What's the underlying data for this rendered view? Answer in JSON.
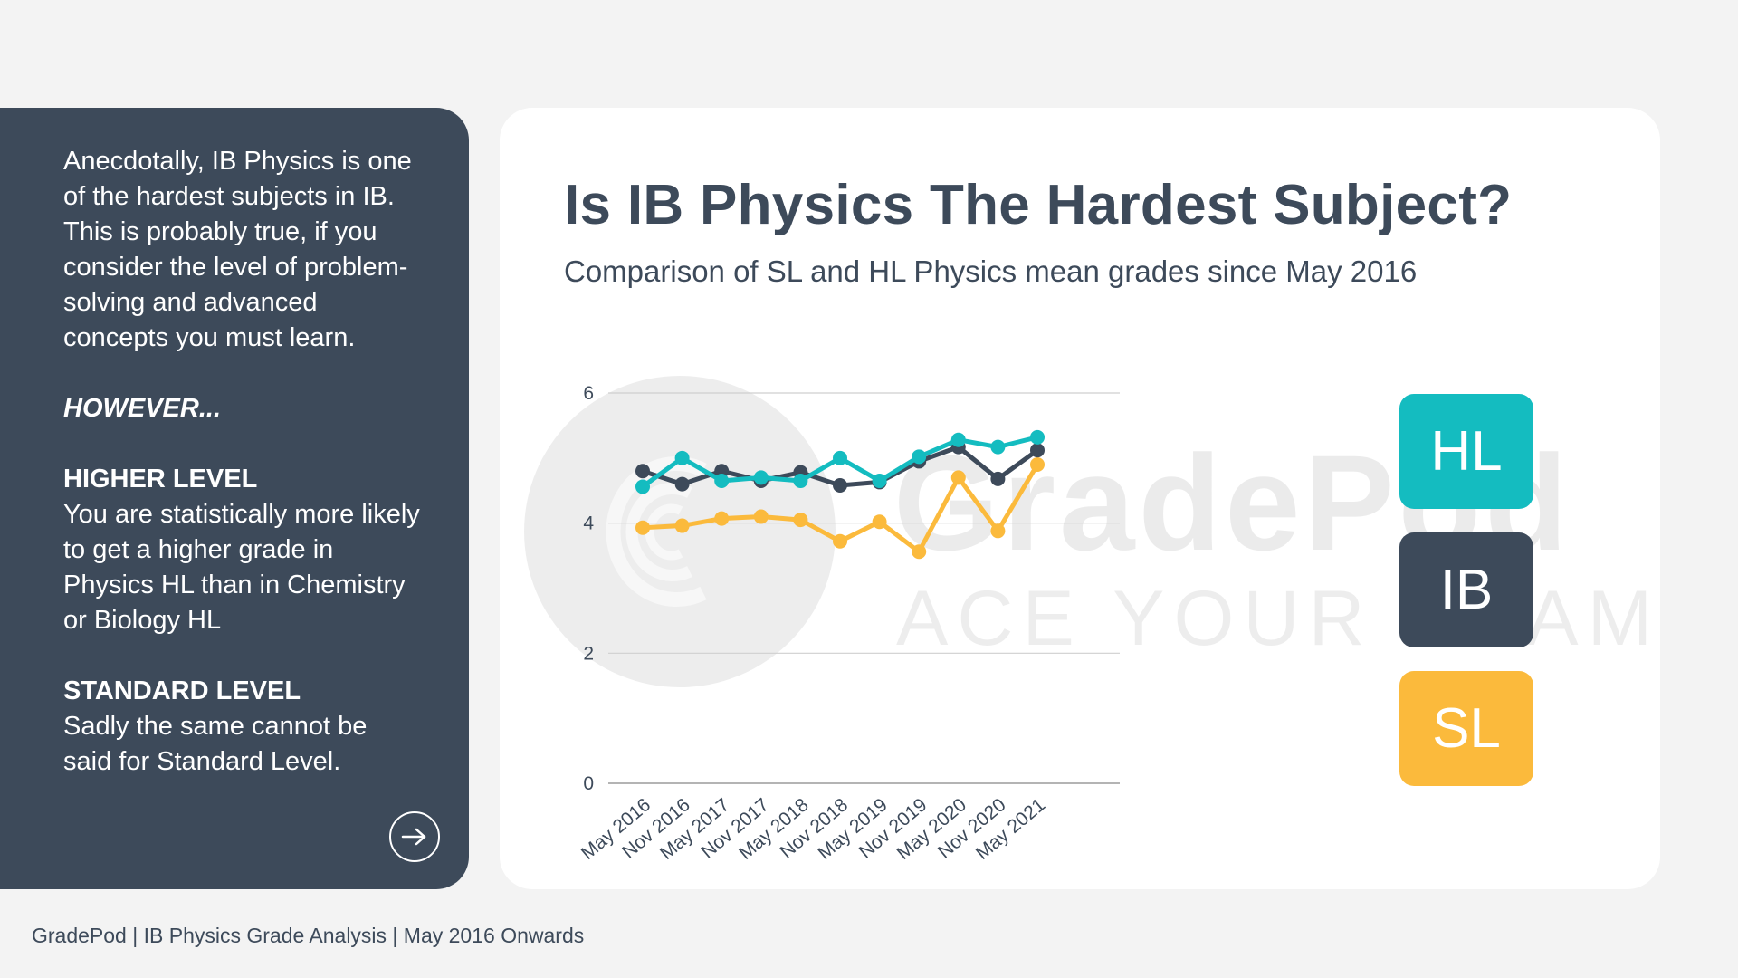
{
  "left_panel": {
    "intro": "Anecdotally, IB Physics is one of the hardest subjects in IB. This is probably true, if you consider the level of problem-solving and advanced concepts you must learn.",
    "however": "HOWEVER...",
    "hl_heading": "HIGHER LEVEL",
    "hl_text": "You are statistically more likely to get a higher grade in Physics HL than in Chemistry or Biology HL",
    "sl_heading": "STANDARD LEVEL",
    "sl_text": "Sadly the same cannot be said for Standard Level.",
    "arrow_icon": "arrow-right-icon"
  },
  "watermark": {
    "name": "GradePod",
    "tagline": "ACE YOUR EXAMS"
  },
  "footer": {
    "text": "GradePod | IB Physics Grade Analysis | May 2016 Onwards"
  },
  "legend": {
    "hl": "HL",
    "ib": "IB",
    "sl": "SL"
  },
  "colors": {
    "panel": "#3d4a5a",
    "hl": "#14bcc0",
    "ib": "#3d4a5a",
    "sl": "#fbba3c",
    "background": "#f3f3f3"
  },
  "chart_data": {
    "type": "line",
    "title": "Is IB Physics The Hardest Subject?",
    "subtitle": "Comparison of SL and HL Physics mean grades since May 2016",
    "xlabel": "",
    "ylabel": "",
    "categories": [
      "May 2016",
      "Nov 2016",
      "May 2017",
      "Nov 2017",
      "May 2018",
      "Nov 2018",
      "May 2019",
      "Nov 2019",
      "May 2020",
      "Nov 2020",
      "May 2021"
    ],
    "yticks": [
      "0",
      "2",
      "4",
      "6"
    ],
    "ylim": [
      0,
      6
    ],
    "grid": true,
    "legend_position": "right",
    "series": [
      {
        "name": "HL",
        "color": "#14bcc0",
        "values": [
          4.56,
          5.0,
          4.65,
          4.7,
          4.65,
          5.0,
          4.65,
          5.02,
          5.28,
          5.17,
          5.32
        ]
      },
      {
        "name": "IB",
        "color": "#3d4a5a",
        "values": [
          4.8,
          4.6,
          4.8,
          4.65,
          4.78,
          4.58,
          4.63,
          4.95,
          5.17,
          4.68,
          5.12
        ]
      },
      {
        "name": "SL",
        "color": "#fbba3c",
        "values": [
          3.93,
          3.96,
          4.07,
          4.1,
          4.05,
          3.72,
          4.02,
          3.56,
          4.7,
          3.88,
          4.9
        ]
      }
    ]
  }
}
